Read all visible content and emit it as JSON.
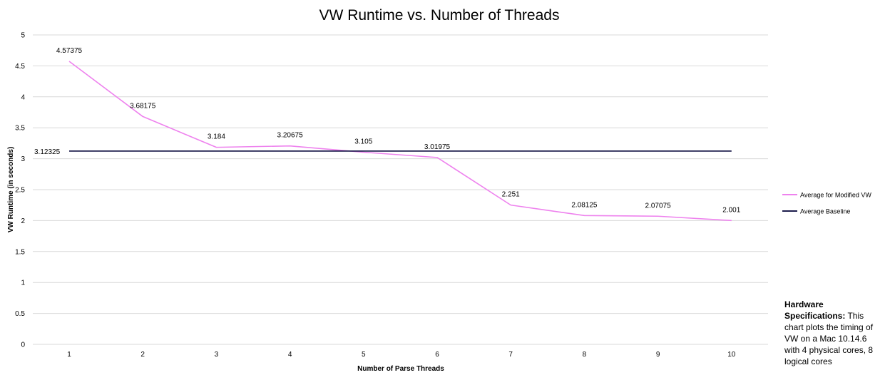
{
  "chart_data": {
    "type": "line",
    "title": "VW Runtime vs. Number of Threads",
    "xlabel": "Number of Parse Threads",
    "ylabel": "VW Runtime (in seconds)",
    "categories": [
      "1",
      "2",
      "3",
      "4",
      "5",
      "6",
      "7",
      "8",
      "9",
      "10"
    ],
    "ylim": [
      0,
      5
    ],
    "yticks": [
      "0",
      "0.5",
      "1",
      "1.5",
      "2",
      "2.5",
      "3",
      "3.5",
      "4",
      "4.5",
      "5"
    ],
    "grid": true,
    "legend_position": "right",
    "series": [
      {
        "name": "Average for Modified VW",
        "color": "#ee82ee",
        "values": [
          4.57375,
          3.68175,
          3.184,
          3.20675,
          3.105,
          3.01975,
          2.251,
          2.08125,
          2.07075,
          2.001
        ],
        "labels": [
          "4.57375",
          "3.68175",
          "3.184",
          "3.20675",
          "3.105",
          "3.01975",
          "2.251",
          "2.08125",
          "2.07075",
          "2.001"
        ]
      },
      {
        "name": "Average Baseline",
        "color": "#1c1c4c",
        "values": [
          3.12325,
          3.12325,
          3.12325,
          3.12325,
          3.12325,
          3.12325,
          3.12325,
          3.12325,
          3.12325,
          3.12325
        ],
        "labels": [
          "3.12325"
        ]
      }
    ]
  },
  "note": {
    "heading": "Hardware Specifications:",
    "body": " This chart plots the timing of VW on a Mac 10.14.6 with 4 physical cores, 8 logical cores"
  }
}
